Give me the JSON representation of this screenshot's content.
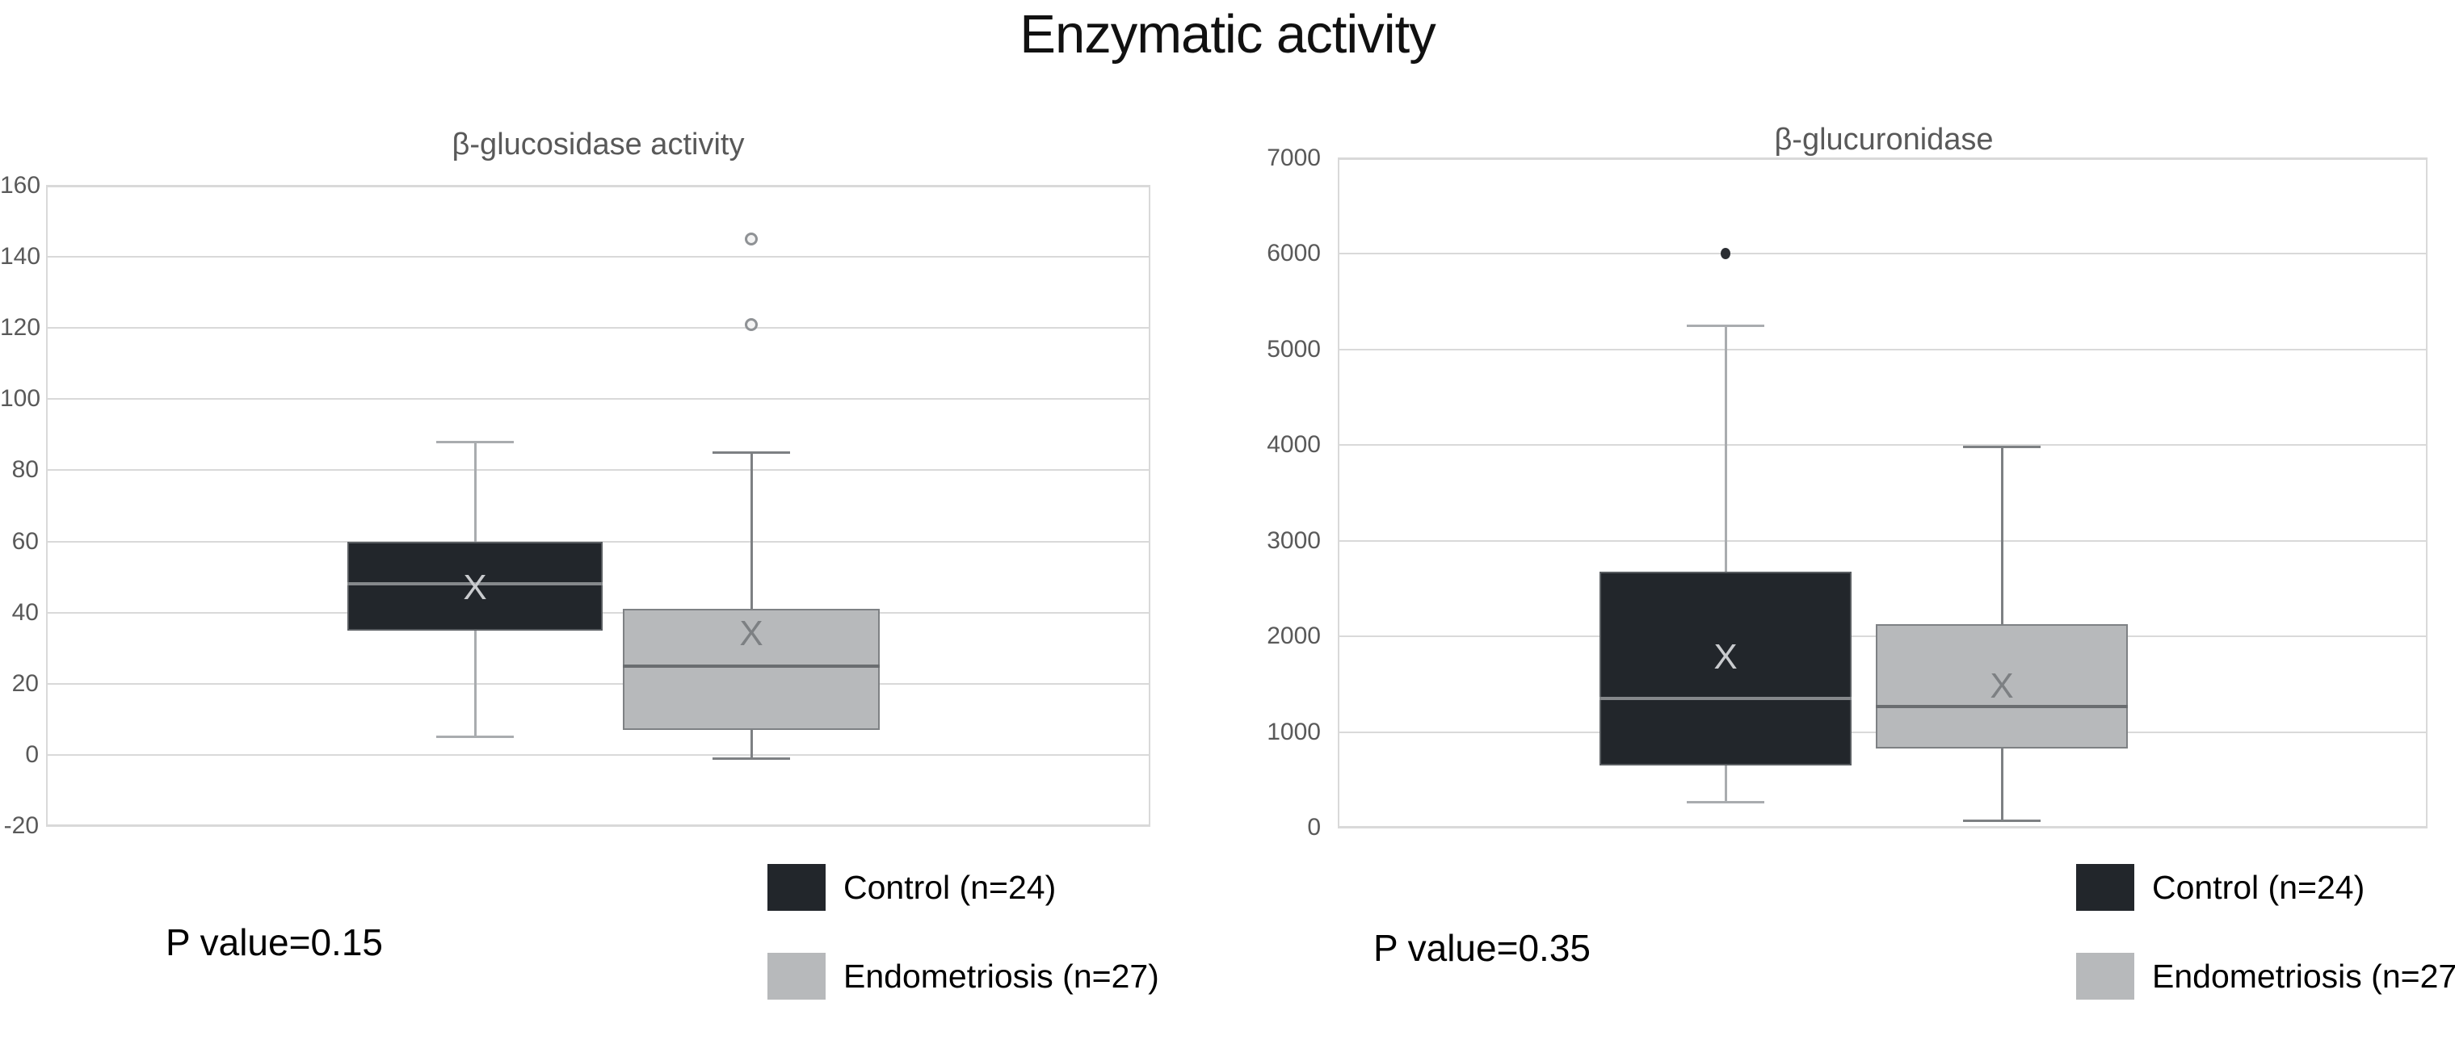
{
  "title": "Enzymatic activity",
  "legend": {
    "control": "Control (n=24)",
    "endometriosis": "Endometriosis (n=27)"
  },
  "colors": {
    "background": "#ffffff",
    "title_text": "#111111",
    "subtitle_text": "#595959",
    "axis_text": "#595959",
    "gridline": "#d9d9d9",
    "control_fill": "#22262b",
    "control_border": "#595d61",
    "control_median": "#85888b",
    "control_mean": "#c9cbce",
    "control_whisker": "#a9acaf",
    "endo_fill": "#b7b9bb",
    "endo_border": "#7e8184",
    "endo_median": "#6a6d70",
    "endo_mean": "#7d8083",
    "endo_whisker": "#7d8083",
    "outlier_ring": "#8f9295",
    "outlier_dot": "#2b2e33",
    "legend_text": "#000000",
    "p_value_text": "#000000"
  },
  "chart_data": [
    {
      "type": "box",
      "title": "β-glucosidase activity",
      "p_value": "P value=0.15",
      "ylim": [
        -20,
        160
      ],
      "ytick_step": 20,
      "yticks": [
        160,
        140,
        120,
        100,
        80,
        60,
        40,
        20,
        0,
        -20
      ],
      "grid": true,
      "legend_position": "bottom",
      "series": [
        {
          "name": "Control (n=24)",
          "min": 5,
          "q1": 35,
          "median": 48,
          "q3": 60,
          "max": 88,
          "mean": 47,
          "outliers": []
        },
        {
          "name": "Endometriosis (n=27)",
          "min": -1,
          "q1": 7,
          "median": 25,
          "q3": 41,
          "max": 85,
          "mean": 34,
          "outliers": [
            121,
            145
          ]
        }
      ]
    },
    {
      "type": "box",
      "title": "β-glucuronidase",
      "p_value": "P value=0.35",
      "ylim": [
        0,
        7000
      ],
      "ytick_step": 1000,
      "yticks": [
        7000,
        6000,
        5000,
        4000,
        3000,
        2000,
        1000,
        0
      ],
      "grid": true,
      "legend_position": "bottom",
      "series": [
        {
          "name": "Control (n=24)",
          "min": 270,
          "q1": 650,
          "median": 1350,
          "q3": 2680,
          "max": 5250,
          "mean": 1780,
          "outliers": [
            6000
          ]
        },
        {
          "name": "Endometriosis (n=27)",
          "min": 70,
          "q1": 830,
          "median": 1270,
          "q3": 2130,
          "max": 3980,
          "mean": 1480,
          "outliers": []
        }
      ]
    }
  ]
}
